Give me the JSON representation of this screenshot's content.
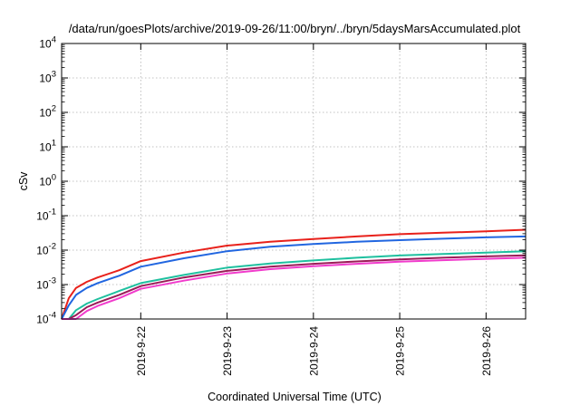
{
  "chart_data": {
    "type": "line",
    "title": "/data/run/goesPlots/archive/2019-09-26/11:00/bryn/../bryn/5daysMarsAccumulated.plot",
    "xlabel": "Coordinated Universal Time (UTC)",
    "ylabel": "cSv",
    "xscale": "time",
    "yscale": "log",
    "xlim": [
      "2019-09-21T02:00:00Z",
      "2019-09-26T11:00:00Z"
    ],
    "ylim": [
      0.0001,
      10000
    ],
    "grid": true,
    "legend": "none",
    "x_ticks": [
      "2019-9-22",
      "2019-9-23",
      "2019-9-24",
      "2019-9-25",
      "2019-9-26"
    ],
    "y_ticks": [
      {
        "base": "10",
        "exp": "4"
      },
      {
        "base": "10",
        "exp": "3"
      },
      {
        "base": "10",
        "exp": "2"
      },
      {
        "base": "10",
        "exp": "1"
      },
      {
        "base": "10",
        "exp": "0"
      },
      {
        "base": "10",
        "exp": "-1"
      },
      {
        "base": "10",
        "exp": "-2"
      },
      {
        "base": "10",
        "exp": "-3"
      },
      {
        "base": "10",
        "exp": "-4"
      }
    ],
    "x": [
      "2019-09-21T02:00:00Z",
      "2019-09-21T04:00:00Z",
      "2019-09-21T06:00:00Z",
      "2019-09-21T09:00:00Z",
      "2019-09-21T12:00:00Z",
      "2019-09-21T18:00:00Z",
      "2019-09-22T00:00:00Z",
      "2019-09-22T12:00:00Z",
      "2019-09-23T00:00:00Z",
      "2019-09-23T12:00:00Z",
      "2019-09-24T00:00:00Z",
      "2019-09-24T12:00:00Z",
      "2019-09-25T00:00:00Z",
      "2019-09-25T12:00:00Z",
      "2019-09-26T00:00:00Z",
      "2019-09-26T11:00:00Z"
    ],
    "series": [
      {
        "color": "#e8211b",
        "values": [
          0.0001,
          0.0004,
          0.0008,
          0.0012,
          0.0016,
          0.0026,
          0.0048,
          0.0085,
          0.0135,
          0.0175,
          0.021,
          0.025,
          0.029,
          0.032,
          0.035,
          0.039
        ]
      },
      {
        "color": "#2166e0",
        "values": [
          0.0001,
          0.00025,
          0.0005,
          0.0008,
          0.0011,
          0.0018,
          0.0033,
          0.0058,
          0.0093,
          0.0125,
          0.015,
          0.0175,
          0.0195,
          0.0215,
          0.0235,
          0.025
        ]
      },
      {
        "color": "#1fc09f",
        "values": [
          0.0001,
          0.0001,
          0.00018,
          0.00028,
          0.00038,
          0.00065,
          0.0011,
          0.0019,
          0.0031,
          0.0041,
          0.005,
          0.006,
          0.007,
          0.0077,
          0.0085,
          0.0093
        ]
      },
      {
        "color": "#9b1b57",
        "values": [
          0.0001,
          0.0001,
          0.00013,
          0.00022,
          0.0003,
          0.0005,
          0.0009,
          0.0016,
          0.0025,
          0.0033,
          0.004,
          0.0047,
          0.0054,
          0.006,
          0.0066,
          0.0071
        ]
      },
      {
        "color": "#f13bcc",
        "values": [
          0.0001,
          0.0001,
          0.0001,
          0.00017,
          0.00024,
          0.0004,
          0.00075,
          0.0013,
          0.0021,
          0.0028,
          0.0034,
          0.004,
          0.0046,
          0.0051,
          0.0056,
          0.006
        ]
      }
    ]
  }
}
